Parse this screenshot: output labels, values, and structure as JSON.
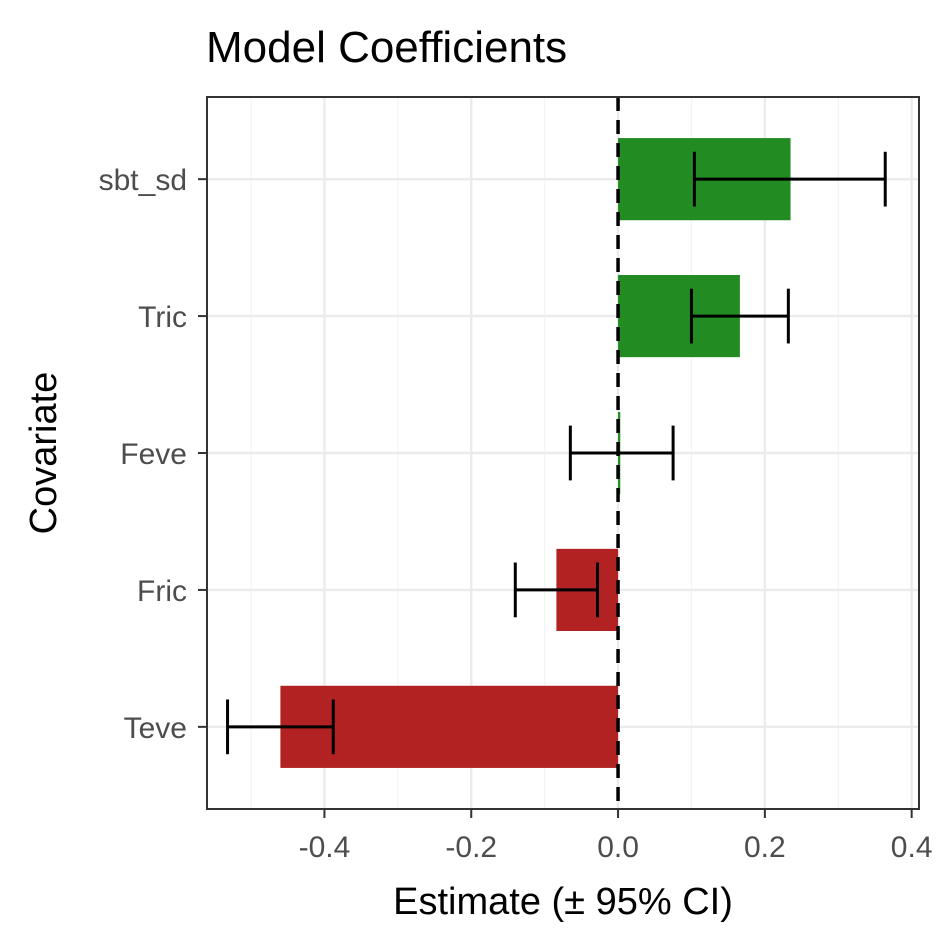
{
  "chart_data": {
    "type": "bar",
    "orientation": "horizontal",
    "title": "Model Coefficients",
    "xlabel": "Estimate (± 95% CI)",
    "ylabel": "Covariate",
    "xlim": [
      -0.56,
      0.41
    ],
    "xticks": [
      -0.4,
      -0.2,
      0.0,
      0.2,
      0.4
    ],
    "xtick_labels": [
      "-0.4",
      "-0.2",
      "0.0",
      "0.2",
      "0.4"
    ],
    "grid": true,
    "reference_line": {
      "x": 0,
      "style": "dashed",
      "color": "#000000"
    },
    "colors": {
      "positive": "#228b22",
      "negative": "#b22222"
    },
    "categories": [
      "sbt_sd",
      "Tric",
      "Feve",
      "Fric",
      "Teve"
    ],
    "values": [
      0.235,
      0.166,
      0.003,
      -0.084,
      -0.46
    ],
    "ci_low": [
      0.104,
      0.1,
      -0.065,
      -0.14,
      -0.532
    ],
    "ci_high": [
      0.364,
      0.232,
      0.075,
      -0.028,
      -0.388
    ]
  }
}
